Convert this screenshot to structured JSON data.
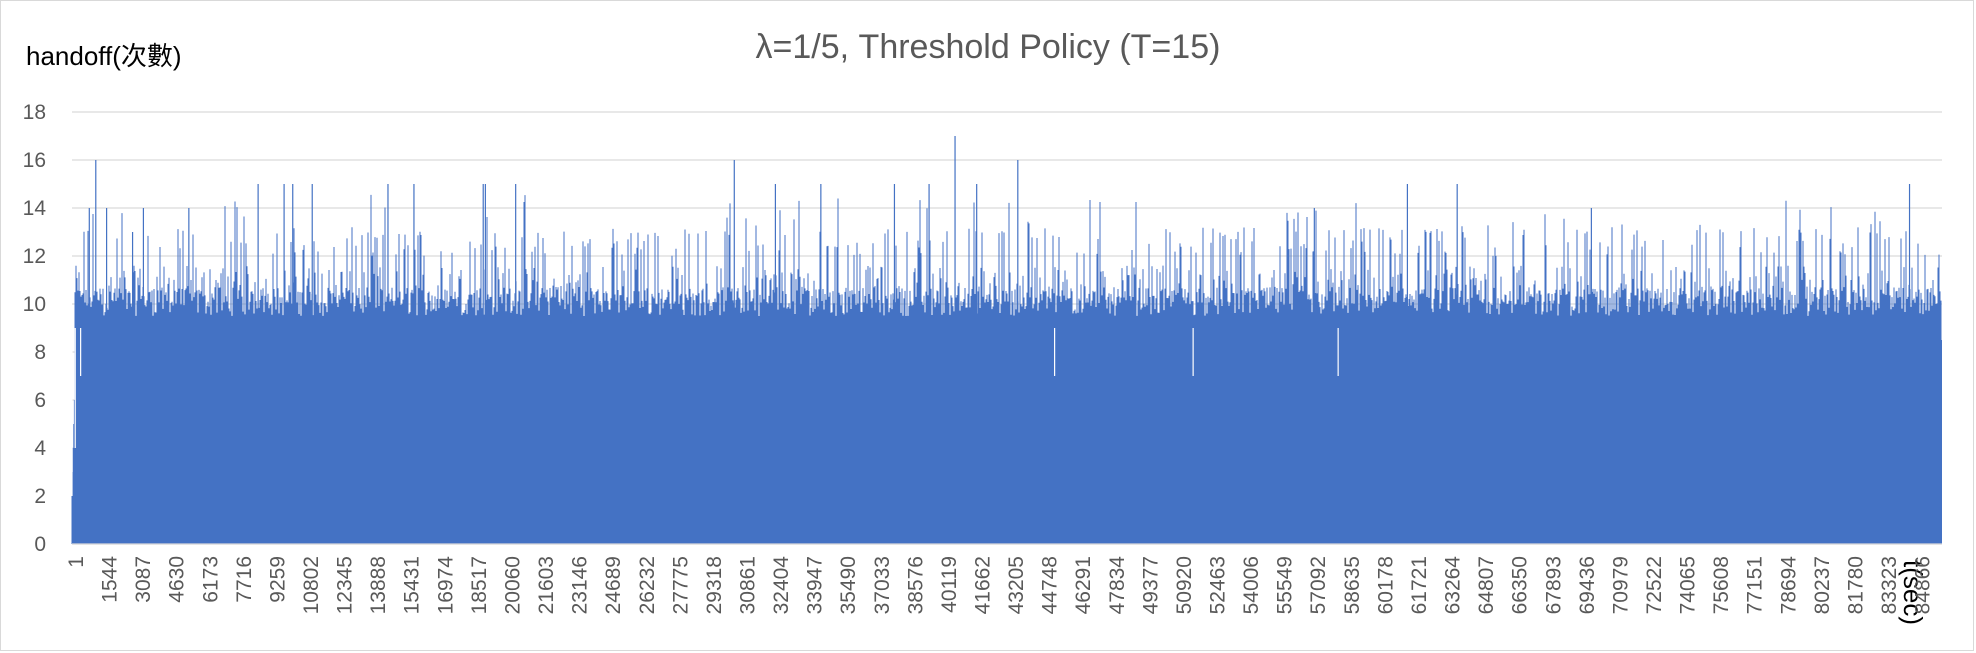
{
  "chart_data": {
    "type": "bar",
    "title": "λ=1/5, Threshold Policy (T=15)",
    "ylabel": "handoff(次數)",
    "xlabel": "t(sec)",
    "ylim": [
      0,
      18
    ],
    "y_ticks": [
      "0",
      "2",
      "4",
      "6",
      "8",
      "10",
      "12",
      "14",
      "16",
      "18"
    ],
    "x_tick_labels": [
      "1",
      "1544",
      "3087",
      "4630",
      "6173",
      "7716",
      "9259",
      "10802",
      "12345",
      "13888",
      "15431",
      "16974",
      "18517",
      "20060",
      "21603",
      "23146",
      "24689",
      "26232",
      "27775",
      "29318",
      "30861",
      "32404",
      "33947",
      "35490",
      "37033",
      "38576",
      "40119",
      "41662",
      "43205",
      "44748",
      "46291",
      "47834",
      "49377",
      "50920",
      "52463",
      "54006",
      "55549",
      "57092",
      "58635",
      "60178",
      "61721",
      "63264",
      "64807",
      "66350",
      "67893",
      "69436",
      "70979",
      "72522",
      "74065",
      "75608",
      "77151",
      "78694",
      "80237",
      "81780",
      "83323",
      "84866"
    ],
    "x_range": [
      1,
      86400
    ],
    "typical_range": [
      9,
      12
    ],
    "spikes": [
      {
        "t": 1,
        "value": 2
      },
      {
        "t": 150,
        "value": 4
      },
      {
        "t": 400,
        "value": 7
      },
      {
        "t": 1100,
        "value": 16
      },
      {
        "t": 800,
        "value": 14
      },
      {
        "t": 1600,
        "value": 14
      },
      {
        "t": 2800,
        "value": 13
      },
      {
        "t": 3300,
        "value": 14
      },
      {
        "t": 5400,
        "value": 14
      },
      {
        "t": 8600,
        "value": 15
      },
      {
        "t": 9800,
        "value": 15
      },
      {
        "t": 10200,
        "value": 15
      },
      {
        "t": 11100,
        "value": 15
      },
      {
        "t": 14600,
        "value": 15
      },
      {
        "t": 15800,
        "value": 15
      },
      {
        "t": 19000,
        "value": 15
      },
      {
        "t": 19100,
        "value": 15
      },
      {
        "t": 20500,
        "value": 15
      },
      {
        "t": 30600,
        "value": 16
      },
      {
        "t": 32500,
        "value": 15
      },
      {
        "t": 34600,
        "value": 15
      },
      {
        "t": 38000,
        "value": 15
      },
      {
        "t": 39600,
        "value": 15
      },
      {
        "t": 40800,
        "value": 17
      },
      {
        "t": 41800,
        "value": 15
      },
      {
        "t": 43700,
        "value": 16
      },
      {
        "t": 57400,
        "value": 14
      },
      {
        "t": 61700,
        "value": 15
      },
      {
        "t": 64000,
        "value": 15
      },
      {
        "t": 70200,
        "value": 14
      },
      {
        "t": 84900,
        "value": 15
      },
      {
        "t": 45400,
        "value": 7
      },
      {
        "t": 51800,
        "value": 7
      },
      {
        "t": 58500,
        "value": 7
      }
    ],
    "grid": true,
    "legend": "none",
    "bar_color": "#4472C4"
  }
}
